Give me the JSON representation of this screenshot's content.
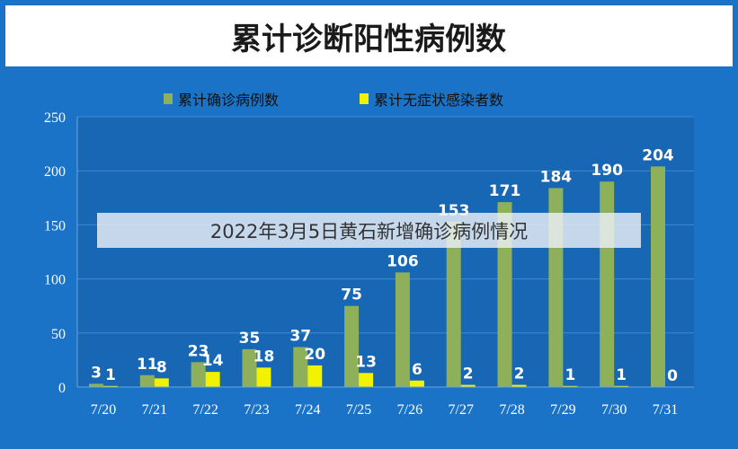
{
  "overlay_caption": "2022年3月5日黄石新增确诊病例情况",
  "colors": {
    "background": "#1a73c6",
    "panel": "#ffffff",
    "plot_area": "#1767b5",
    "confirmed": "#8fb05a",
    "asymptomatic": "#f2f200",
    "axis_text": "#ffffff",
    "gridline": "#3f8ad0"
  },
  "chart_data": {
    "type": "bar",
    "title": "累计诊断阳性病例数",
    "xlabel": "",
    "ylabel": "",
    "ylim": [
      0,
      250
    ],
    "yticks": [
      0,
      50,
      100,
      150,
      200,
      250
    ],
    "legend_position": "top",
    "categories": [
      "7/20",
      "7/21",
      "7/22",
      "7/23",
      "7/24",
      "7/25",
      "7/26",
      "7/27",
      "7/28",
      "7/29",
      "7/30",
      "7/31"
    ],
    "series": [
      {
        "name": "累计确诊病例数",
        "color": "#8fb05a",
        "values": [
          3,
          11,
          23,
          35,
          37,
          75,
          106,
          153,
          171,
          184,
          190,
          204
        ]
      },
      {
        "name": "累计无症状感染者数",
        "color": "#f2f200",
        "values": [
          1,
          8,
          14,
          18,
          20,
          13,
          6,
          2,
          2,
          1,
          1,
          0
        ]
      }
    ]
  }
}
